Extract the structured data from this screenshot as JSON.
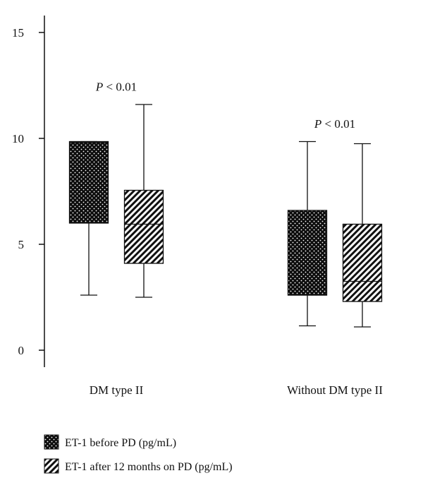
{
  "chart_data": {
    "type": "boxplot",
    "y_ticks": [
      "0",
      "5",
      "10",
      "15"
    ],
    "ylim": [
      -0.8,
      15.8
    ],
    "categories": [
      "DM type II",
      "Without DM type II"
    ],
    "series": [
      {
        "name": "ET-1 before PD (pg/mL)",
        "pattern": "dots",
        "boxes": [
          {
            "category": "DM type II",
            "whisker_low": 2.6,
            "q1": 6.0,
            "median": 9.8,
            "q3": 9.85,
            "whisker_high": 9.85
          },
          {
            "category": "Without DM type II",
            "whisker_low": 1.15,
            "q1": 2.6,
            "median": 2.6,
            "q3": 6.6,
            "whisker_high": 9.85
          }
        ]
      },
      {
        "name": "ET-1 after 12 months on PD (pg/mL)",
        "pattern": "hatch",
        "boxes": [
          {
            "category": "DM type II",
            "whisker_low": 2.5,
            "q1": 4.1,
            "median": 5.95,
            "q3": 7.55,
            "whisker_high": 11.6
          },
          {
            "category": "Without DM type II",
            "whisker_low": 1.1,
            "q1": 2.3,
            "median": 3.25,
            "q3": 5.95,
            "whisker_high": 9.75
          }
        ]
      }
    ],
    "annotations": [
      {
        "category": "DM type II",
        "p_letter": "P",
        "rest": " < 0.01",
        "y": 12.25
      },
      {
        "category": "Without DM type II",
        "p_letter": "P",
        "rest": " < 0.01",
        "y": 10.5
      }
    ],
    "legend_position": "bottom-left",
    "colors": {
      "box_fill": "#0d0d0d",
      "dot": "#ffffff",
      "hatch_bg": "#ffffff",
      "hatch_line": "#111111",
      "axis": "#111111"
    }
  }
}
